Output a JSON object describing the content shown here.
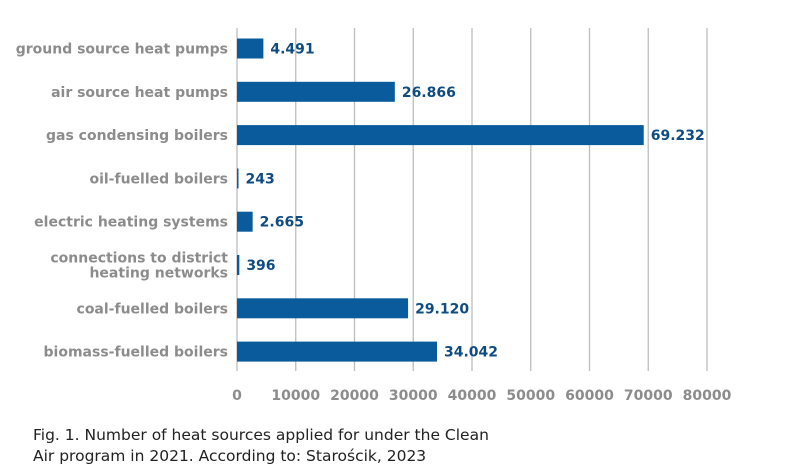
{
  "chart_data": {
    "type": "bar",
    "orientation": "horizontal",
    "categories": [
      [
        "ground source heat pumps"
      ],
      [
        "air source heat pumps"
      ],
      [
        "gas condensing boilers"
      ],
      [
        "oil-fuelled boilers"
      ],
      [
        "electric heating systems"
      ],
      [
        "connections to district",
        "heating networks"
      ],
      [
        "coal-fuelled boilers"
      ],
      [
        "biomass-fuelled boilers"
      ]
    ],
    "values": [
      4491,
      26866,
      69232,
      243,
      2665,
      396,
      29120,
      34042
    ],
    "data_labels": [
      "4.491",
      "26.866",
      "69.232",
      "243",
      "2.665",
      "396",
      "29.120",
      "34.042"
    ],
    "xlim": [
      0,
      80000
    ],
    "xticks": [
      "0",
      "10000",
      "20000",
      "30000",
      "40000",
      "50000",
      "60000",
      "70000",
      "80000"
    ],
    "grid": "vertical",
    "colors": {
      "bar": "#0a5b9c",
      "value_label": "#0f4c81",
      "category_label": "#8c8c8c",
      "grid": "#bdbdbd"
    }
  },
  "caption": {
    "line1": "Fig. 1. Number of heat sources applied for under the Clean",
    "line2": "Air program in 2021. According to: Starościk, 2023"
  }
}
